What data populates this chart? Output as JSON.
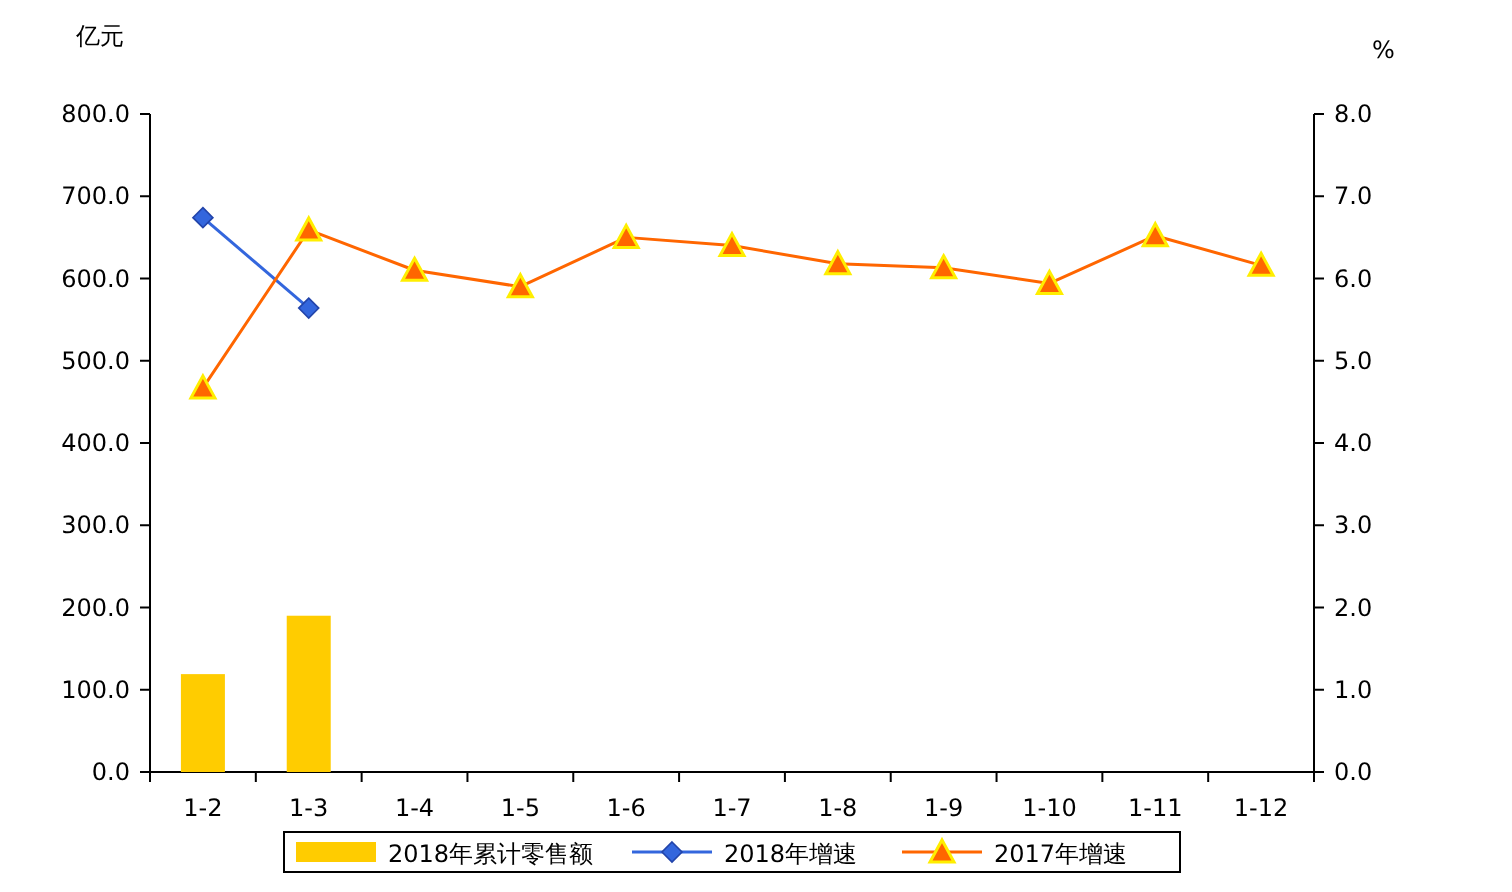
{
  "chart_data": {
    "type": "bar",
    "ylabel": "亿元",
    "y2label": "%",
    "categories": [
      "1-2",
      "1-3",
      "1-4",
      "1-5",
      "1-6",
      "1-7",
      "1-8",
      "1-9",
      "1-10",
      "1-11",
      "1-12"
    ],
    "series": [
      {
        "name": "2018年累计零售额",
        "color": "#ffcc00",
        "values": [
          119,
          190,
          null,
          null,
          null,
          null,
          null,
          null,
          null,
          null,
          null
        ]
      },
      {
        "name": "2018年增速",
        "type": "line",
        "axis": "y2",
        "marker": "diamond",
        "color": "#3366dd",
        "values": [
          6.74,
          5.64,
          null,
          null,
          null,
          null,
          null,
          null,
          null,
          null,
          null
        ]
      },
      {
        "name": "2017年增速",
        "type": "line",
        "axis": "y2",
        "marker": "triangle",
        "color": "#ff6600",
        "values": [
          4.67,
          6.59,
          6.1,
          5.9,
          6.5,
          6.4,
          6.18,
          6.13,
          5.94,
          6.52,
          6.16
        ]
      }
    ],
    "ylim": [
      0,
      800
    ],
    "yticks": [
      {
        "value": 0,
        "label": "0.0"
      },
      {
        "value": 100,
        "label": "100.0"
      },
      {
        "value": 200,
        "label": "200.0"
      },
      {
        "value": 300,
        "label": "300.0"
      },
      {
        "value": 400,
        "label": "400.0"
      },
      {
        "value": 500,
        "label": "500.0"
      },
      {
        "value": 600,
        "label": "600.0"
      },
      {
        "value": 700,
        "label": "700.0"
      },
      {
        "value": 800,
        "label": "800.0"
      }
    ],
    "y2lim": [
      0,
      8
    ],
    "y2ticks": [
      {
        "value": 0,
        "label": "0.0"
      },
      {
        "value": 1,
        "label": "1.0"
      },
      {
        "value": 2,
        "label": "2.0"
      },
      {
        "value": 3,
        "label": "3.0"
      },
      {
        "value": 4,
        "label": "4.0"
      },
      {
        "value": 5,
        "label": "5.0"
      },
      {
        "value": 6,
        "label": "6.0"
      },
      {
        "value": 7,
        "label": "7.0"
      },
      {
        "value": 8,
        "label": "8.0"
      }
    ],
    "legend": "bottom"
  }
}
